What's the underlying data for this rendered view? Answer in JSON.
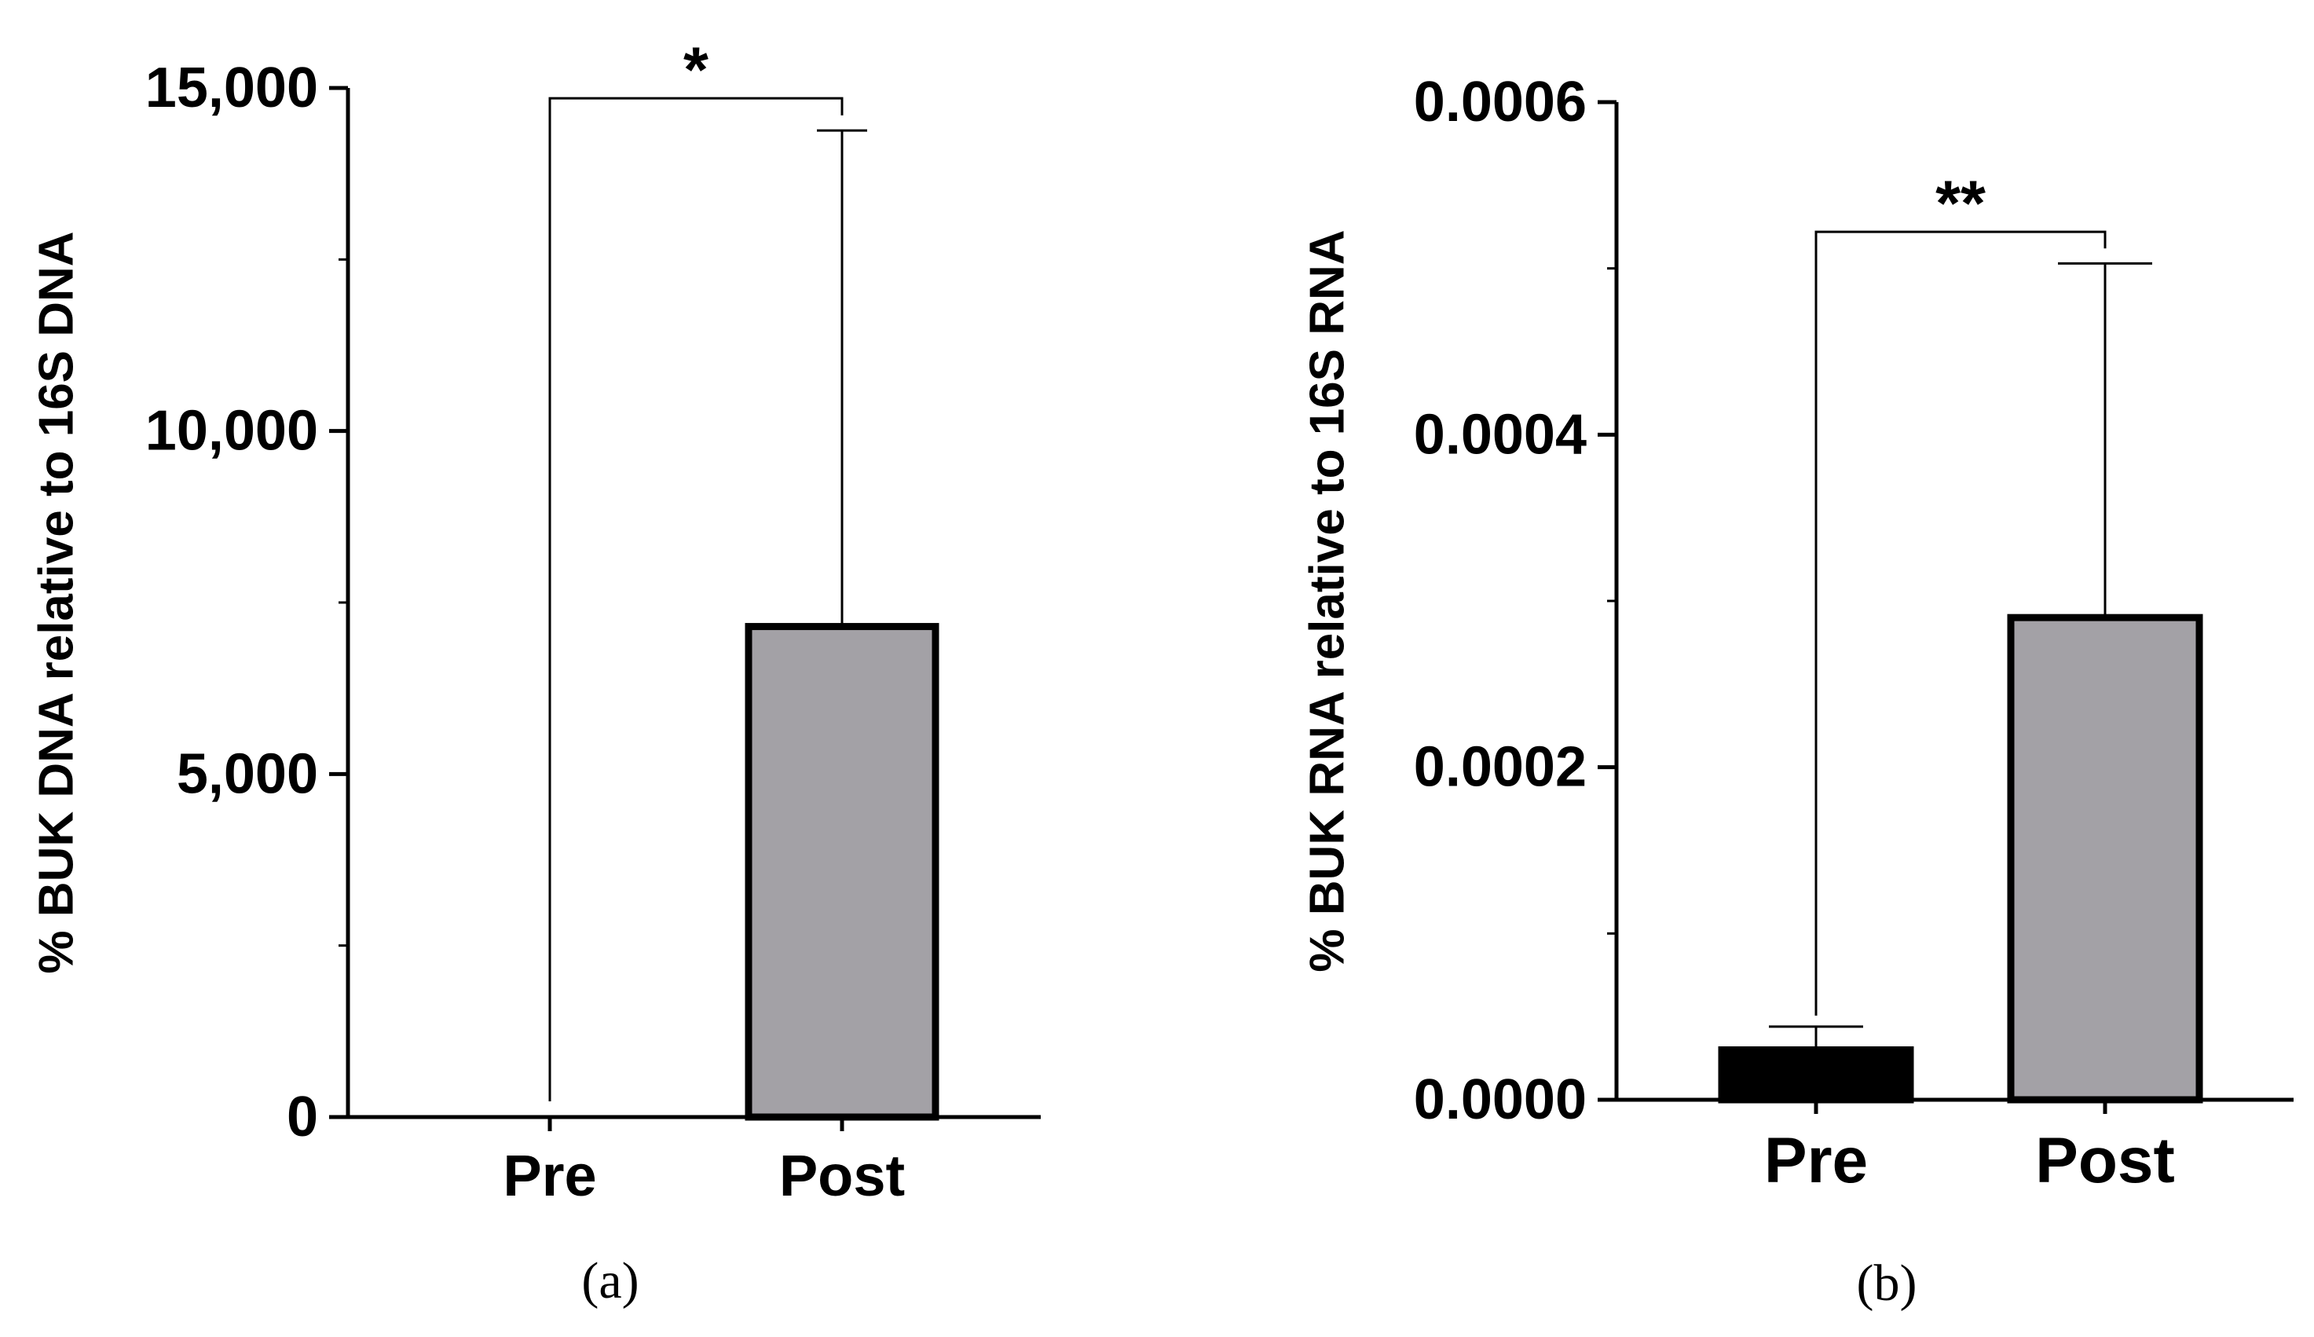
{
  "chart_data": [
    {
      "type": "bar",
      "panel_label": "(a)",
      "title": "",
      "xlabel": "",
      "ylabel": "% BUK DNA relative to 16S DNA",
      "categories": [
        "Pre",
        "Post"
      ],
      "values": [
        0,
        7150
      ],
      "error_upper": [
        0,
        14380
      ],
      "bar_colors": [
        "#000000",
        "#a3a1a6"
      ],
      "ylim": [
        0,
        15000
      ],
      "yticks": [
        0,
        5000,
        10000,
        15000
      ],
      "ytick_labels": [
        "0",
        "5,000",
        "10,000",
        "15,000"
      ],
      "minor_yticks": [
        2500,
        7500,
        12500
      ],
      "significance": {
        "label": "*",
        "between": [
          "Pre",
          "Post"
        ],
        "y": 14850,
        "right_end": 14600
      },
      "grid": false,
      "legend": "none"
    },
    {
      "type": "bar",
      "panel_label": "(b)",
      "title": "",
      "xlabel": "",
      "ylabel": "% BUK RNA relative to 16S RNA",
      "categories": [
        "Pre",
        "Post"
      ],
      "values": [
        3e-05,
        0.00029
      ],
      "error_upper": [
        4.4e-05,
        0.000503
      ],
      "bar_colors": [
        "#000000",
        "#a3a1a6"
      ],
      "ylim": [
        0,
        0.0006
      ],
      "yticks": [
        0,
        0.0002,
        0.0004,
        0.0006
      ],
      "ytick_labels": [
        "0.0000",
        "0.0002",
        "0.0004",
        "0.0006"
      ],
      "minor_yticks": [
        0.0001,
        0.0003,
        0.0005
      ],
      "significance": {
        "label": "**",
        "between": [
          "Pre",
          "Post"
        ],
        "y": 0.000522,
        "right_end": 0.000512
      },
      "grid": false,
      "legend": "none"
    }
  ]
}
